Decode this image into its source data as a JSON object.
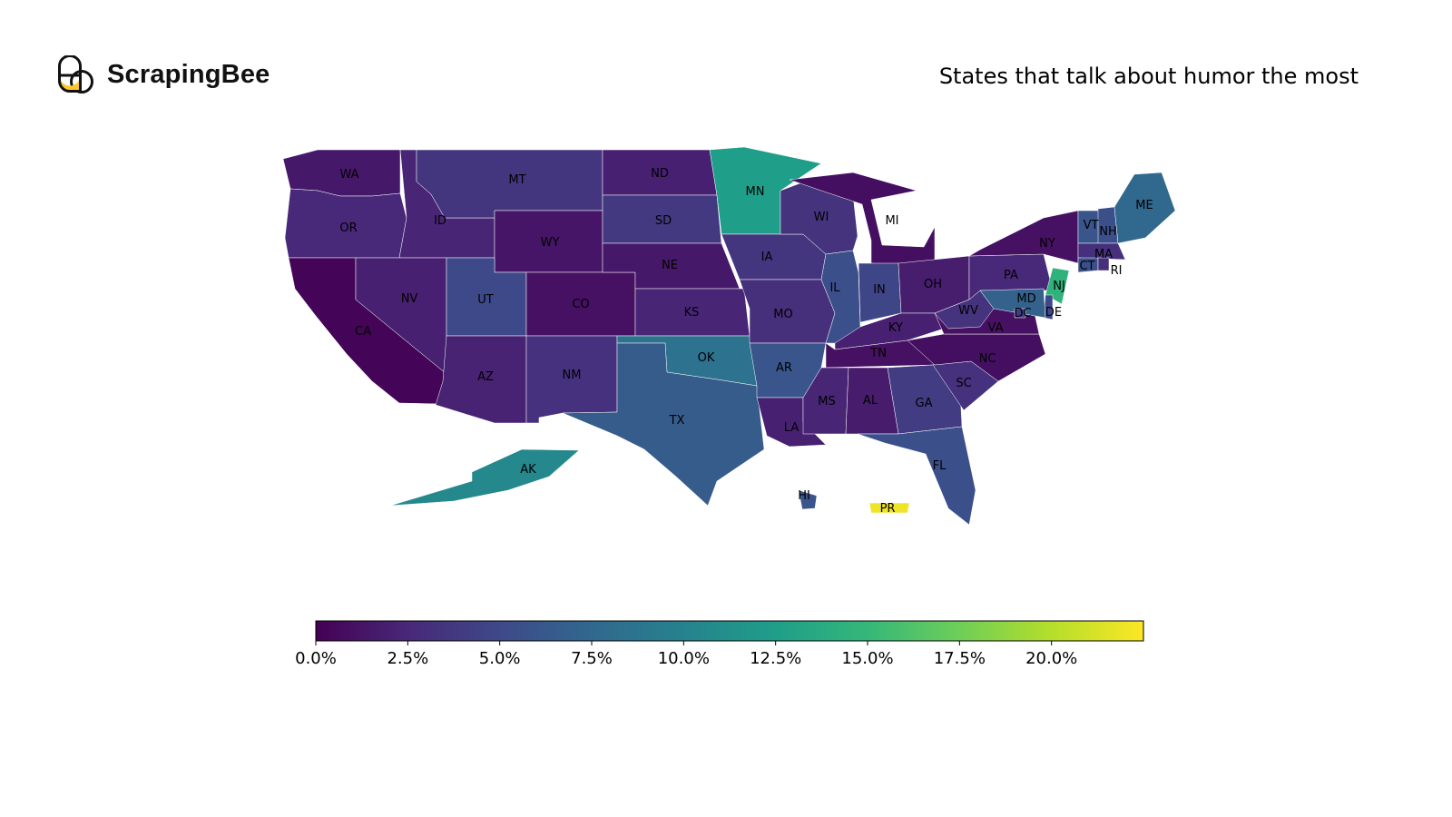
{
  "brand": {
    "name": "ScrapingBee",
    "logo_icon": "bee-logo-icon"
  },
  "title": "States that talk about humor the most",
  "chart_data": {
    "type": "choropleth",
    "colormap": "viridis",
    "colormap_stops": [
      "#440154",
      "#482878",
      "#3e4989",
      "#31688e",
      "#26828e",
      "#1f9e89",
      "#35b779",
      "#6ece58",
      "#b5de2b",
      "#fde725"
    ],
    "value_unit": "%",
    "range": [
      0,
      22.5
    ],
    "colorbar_ticks": [
      {
        "value": 0,
        "label": "0.0%"
      },
      {
        "value": 2.5,
        "label": "2.5%"
      },
      {
        "value": 5,
        "label": "5.0%"
      },
      {
        "value": 7.5,
        "label": "7.5%"
      },
      {
        "value": 10,
        "label": "10.0%"
      },
      {
        "value": 12.5,
        "label": "12.5%"
      },
      {
        "value": 15,
        "label": "15.0%"
      },
      {
        "value": 17.5,
        "label": "17.5%"
      },
      {
        "value": 20,
        "label": "20.0%"
      }
    ],
    "states": [
      {
        "code": "WA",
        "value": 1.5
      },
      {
        "code": "OR",
        "value": 2.5
      },
      {
        "code": "CA",
        "value": 0.2
      },
      {
        "code": "ID",
        "value": 2.3
      },
      {
        "code": "NV",
        "value": 2.0
      },
      {
        "code": "MT",
        "value": 3.5
      },
      {
        "code": "WY",
        "value": 1.3
      },
      {
        "code": "UT",
        "value": 5.0
      },
      {
        "code": "AZ",
        "value": 2.2
      },
      {
        "code": "CO",
        "value": 1.0
      },
      {
        "code": "NM",
        "value": 3.2
      },
      {
        "code": "ND",
        "value": 2.0
      },
      {
        "code": "SD",
        "value": 3.8
      },
      {
        "code": "NE",
        "value": 1.5
      },
      {
        "code": "KS",
        "value": 2.3
      },
      {
        "code": "OK",
        "value": 8.5
      },
      {
        "code": "TX",
        "value": 6.5
      },
      {
        "code": "MN",
        "value": 12.5
      },
      {
        "code": "IA",
        "value": 3.5
      },
      {
        "code": "MO",
        "value": 3.0
      },
      {
        "code": "AR",
        "value": 6.0
      },
      {
        "code": "LA",
        "value": 2.0
      },
      {
        "code": "WI",
        "value": 3.3
      },
      {
        "code": "IL",
        "value": 5.5
      },
      {
        "code": "MI",
        "value": 0.9
      },
      {
        "code": "IN",
        "value": 4.8
      },
      {
        "code": "OH",
        "value": 1.8
      },
      {
        "code": "KY",
        "value": 2.0
      },
      {
        "code": "TN",
        "value": 1.0
      },
      {
        "code": "MS",
        "value": 2.3
      },
      {
        "code": "AL",
        "value": 1.7
      },
      {
        "code": "GA",
        "value": 4.0
      },
      {
        "code": "FL",
        "value": 5.5
      },
      {
        "code": "SC",
        "value": 3.2
      },
      {
        "code": "NC",
        "value": 0.9
      },
      {
        "code": "VA",
        "value": 1.0
      },
      {
        "code": "WV",
        "value": 3.3
      },
      {
        "code": "PA",
        "value": 2.5
      },
      {
        "code": "NY",
        "value": 1.0
      },
      {
        "code": "VT",
        "value": 6.0
      },
      {
        "code": "NH",
        "value": 5.5
      },
      {
        "code": "ME",
        "value": 7.5
      },
      {
        "code": "MA",
        "value": 3.0
      },
      {
        "code": "CT",
        "value": 5.5
      },
      {
        "code": "RI",
        "value": 3.0
      },
      {
        "code": "NJ",
        "value": 14.5
      },
      {
        "code": "DE",
        "value": 5.0
      },
      {
        "code": "MD",
        "value": 7.0
      },
      {
        "code": "DC",
        "value": 4.0
      },
      {
        "code": "AK",
        "value": 10.5
      },
      {
        "code": "HI",
        "value": 6.0
      },
      {
        "code": "PR",
        "value": 22.0
      }
    ]
  }
}
